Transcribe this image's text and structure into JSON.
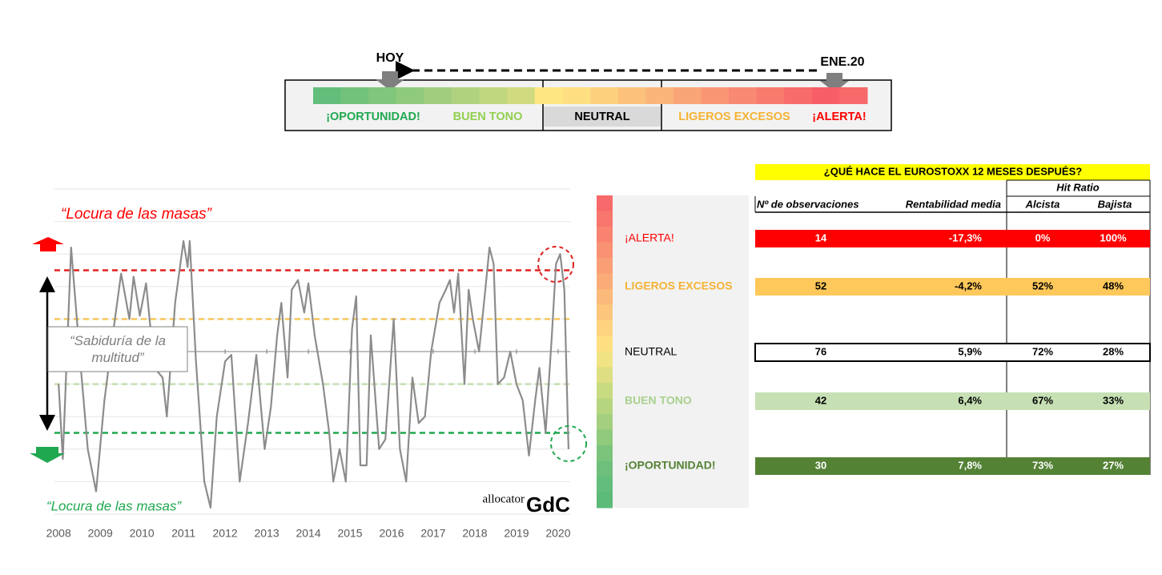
{
  "gauge": {
    "today": "HOY",
    "start": "ENE.20",
    "labels": [
      {
        "text": "¡OPORTUNIDAD!",
        "color": "#1fa84f"
      },
      {
        "text": "BUEN TONO",
        "color": "#92d050"
      },
      {
        "text": "NEUTRAL",
        "color": "#000000"
      },
      {
        "text": "LIGEROS EXCESOS",
        "color": "#f5b335"
      },
      {
        "text": "¡ALERTA!",
        "color": "#ff0000"
      }
    ]
  },
  "chart_data": {
    "type": "line",
    "annotations": [
      {
        "text": "“Locura de las masas”",
        "color": "#ff0000"
      },
      {
        "text": "“Locura de las masas”",
        "color": "#1fa84f"
      },
      {
        "text": "“Sabiduría de la multitud”"
      }
    ],
    "logo": [
      "allocator",
      "GdC"
    ],
    "x": [
      2008.0,
      2008.1,
      2008.3,
      2008.5,
      2008.7,
      2008.9,
      2009.1,
      2009.3,
      2009.5,
      2009.7,
      2009.8,
      2009.95,
      2010.1,
      2010.3,
      2010.5,
      2010.6,
      2010.8,
      2011.0,
      2011.1,
      2011.15,
      2011.3,
      2011.5,
      2011.65,
      2011.8,
      2012.0,
      2012.15,
      2012.35,
      2012.55,
      2012.75,
      2012.95,
      2013.1,
      2013.25,
      2013.35,
      2013.5,
      2013.6,
      2013.75,
      2013.9,
      2014.0,
      2014.15,
      2014.35,
      2014.5,
      2014.6,
      2014.75,
      2014.9,
      2015.05,
      2015.1,
      2015.15,
      2015.25,
      2015.4,
      2015.5,
      2015.7,
      2015.85,
      2016.05,
      2016.2,
      2016.35,
      2016.5,
      2016.65,
      2016.8,
      2016.95,
      2017.15,
      2017.3,
      2017.4,
      2017.5,
      2017.6,
      2017.75,
      2017.85,
      2017.95,
      2018.1,
      2018.25,
      2018.35,
      2018.45,
      2018.55,
      2018.7,
      2018.85,
      2019.0,
      2019.15,
      2019.3,
      2019.45,
      2019.55,
      2019.7,
      2019.85,
      2019.95,
      2020.05,
      2020.15,
      2020.25
    ],
    "series": [
      {
        "color": "#8c8c8c",
        "values": [
          40,
          17,
          82,
          50,
          20,
          7,
          35,
          55,
          74,
          60,
          73,
          61,
          71,
          45,
          42,
          30,
          65,
          84,
          76,
          84,
          47,
          10,
          2,
          30,
          47,
          49,
          10,
          28,
          49,
          20,
          33,
          55,
          65,
          42,
          69,
          72,
          62,
          71,
          55,
          40,
          25,
          10,
          20,
          10,
          57,
          62,
          67,
          15,
          15,
          55,
          20,
          23,
          60,
          20,
          10,
          42,
          28,
          30,
          50,
          65,
          69,
          72,
          62,
          74,
          40,
          69,
          60,
          50,
          69,
          82,
          77,
          40,
          42,
          50,
          40,
          35,
          18,
          35,
          45,
          25,
          55,
          77,
          80,
          69,
          20
        ]
      }
    ],
    "thresholds": [
      {
        "value": 75,
        "color": "#e02020"
      },
      {
        "value": 60,
        "color": "#f7c65a"
      },
      {
        "value": 40,
        "color": "#c5dfb0"
      },
      {
        "value": 25,
        "color": "#1fa84f"
      }
    ],
    "xlim": [
      2007.9,
      2020.29
    ],
    "xticks": [
      2008,
      2009,
      2010,
      2011,
      2012,
      2013,
      2014,
      2015,
      2016,
      2017,
      2018,
      2019,
      2020
    ],
    "ylim": [
      0,
      100
    ]
  },
  "table": {
    "title": "¿QUÉ HACE EL EUROSTOXX 12 MESES DESPUÉS?",
    "group": "Hit Ratio",
    "columns": [
      "Nº de observaciones",
      "Rentabilidad media",
      "Alcista",
      "Bajista"
    ],
    "rows": [
      {
        "label": "¡ALERTA!",
        "cells": [
          "14",
          "-17,3%",
          "0%",
          "100%"
        ]
      },
      {
        "label": "LIGEROS EXCESOS",
        "cells": [
          "52",
          "-4,2%",
          "52%",
          "48%"
        ]
      },
      {
        "label": "NEUTRAL",
        "cells": [
          "76",
          "5,9%",
          "72%",
          "28%"
        ]
      },
      {
        "label": "BUEN TONO",
        "cells": [
          "42",
          "6,4%",
          "67%",
          "33%"
        ]
      },
      {
        "label": "¡OPORTUNIDAD!",
        "cells": [
          "30",
          "7,8%",
          "73%",
          "27%"
        ]
      }
    ]
  }
}
